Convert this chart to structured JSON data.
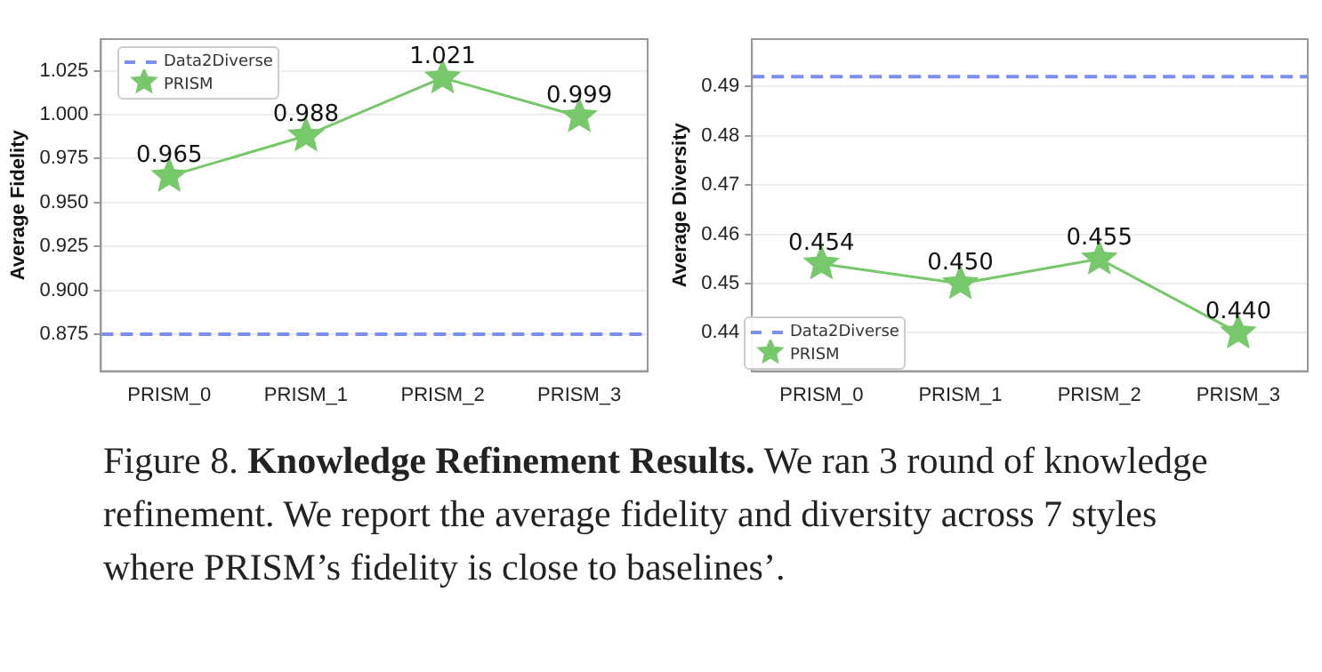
{
  "chart_data": [
    {
      "type": "line",
      "ylabel": "Average Fidelity",
      "categories": [
        "PRISM_0",
        "PRISM_1",
        "PRISM_2",
        "PRISM_3"
      ],
      "series": [
        {
          "name": "PRISM",
          "color": "#77c76b",
          "values": [
            0.965,
            0.988,
            1.021,
            0.999
          ],
          "value_labels": [
            "0.965",
            "0.988",
            "1.021",
            "0.999"
          ]
        }
      ],
      "ref_lines": [
        {
          "axis": "y",
          "value": 0.875,
          "label": "Data2Diverse",
          "color": "#7b8ff0",
          "line_style": "dashed"
        }
      ],
      "ylim": [
        0.854,
        1.043
      ],
      "yticks": [
        {
          "value": 0.875,
          "label": "0.875"
        },
        {
          "value": 0.9,
          "label": "0.900"
        },
        {
          "value": 0.925,
          "label": "0.925"
        },
        {
          "value": 0.95,
          "label": "0.950"
        },
        {
          "value": 0.975,
          "label": "0.975"
        },
        {
          "value": 1.0,
          "label": "1.000"
        },
        {
          "value": 1.025,
          "label": "1.025"
        }
      ],
      "grid": "y",
      "legend": "top left",
      "marker": "star",
      "line_style": "solid",
      "annotations": [
        "Figure 8.",
        "Knowledge Refinement Results.",
        "We ran 3 round of knowledge refinement. We report the average fidelity and diversity across 7 styles where PRISM’s fidelity is close to baselines’."
      ]
    },
    {
      "type": "line",
      "ylabel": "Average Diversity",
      "categories": [
        "PRISM_0",
        "PRISM_1",
        "PRISM_2",
        "PRISM_3"
      ],
      "series": [
        {
          "name": "PRISM",
          "color": "#77c76b",
          "values": [
            0.454,
            0.45,
            0.455,
            0.44
          ],
          "value_labels": [
            "0.454",
            "0.450",
            "0.455",
            "0.440"
          ]
        }
      ],
      "ref_lines": [
        {
          "axis": "y",
          "value": 0.492,
          "label": "Data2Diverse",
          "color": "#7b8ff0",
          "line_style": "dashed"
        }
      ],
      "ylim": [
        0.4322,
        0.4996
      ],
      "yticks": [
        0.44,
        0.45,
        0.46,
        0.47,
        0.48,
        0.49
      ],
      "grid": "y",
      "legend": "bottom left",
      "marker": "star",
      "line_style": "solid"
    }
  ]
}
